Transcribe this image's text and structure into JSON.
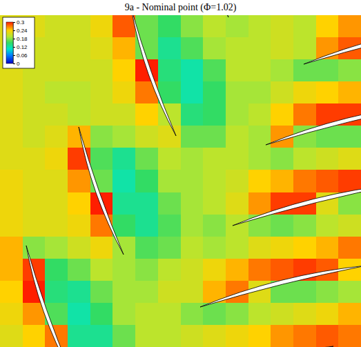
{
  "chart_data": {
    "type": "contour",
    "title": "9a - Nominal point (Φ=1.02)",
    "tick_labels": false,
    "cells": [
      [
        0.22,
        0.22,
        0.21,
        0.21,
        0.23,
        0.28,
        0.17,
        0.15,
        0.18,
        0.2,
        0.19,
        0.2,
        0.21,
        0.2,
        0.24,
        0.26
      ],
      [
        0.22,
        0.21,
        0.21,
        0.21,
        0.22,
        0.25,
        0.17,
        0.13,
        0.16,
        0.19,
        0.2,
        0.2,
        0.21,
        0.2,
        0.26,
        0.28
      ],
      [
        0.22,
        0.21,
        0.21,
        0.21,
        0.21,
        0.24,
        0.3,
        0.14,
        0.12,
        0.16,
        0.2,
        0.2,
        0.19,
        0.17,
        0.17,
        0.18
      ],
      [
        0.22,
        0.21,
        0.2,
        0.2,
        0.21,
        0.23,
        0.27,
        0.15,
        0.12,
        0.15,
        0.19,
        0.19,
        0.21,
        0.23,
        0.24,
        0.25
      ],
      [
        0.22,
        0.21,
        0.21,
        0.2,
        0.21,
        0.21,
        0.24,
        0.2,
        0.14,
        0.15,
        0.19,
        0.2,
        0.24,
        0.27,
        0.29,
        0.29
      ],
      [
        0.22,
        0.21,
        0.22,
        0.25,
        0.18,
        0.19,
        0.21,
        0.22,
        0.17,
        0.17,
        0.2,
        0.19,
        0.26,
        0.18,
        0.17,
        0.17
      ],
      [
        0.22,
        0.22,
        0.23,
        0.29,
        0.16,
        0.13,
        0.17,
        0.2,
        0.19,
        0.2,
        0.2,
        0.19,
        0.18,
        0.2,
        0.21,
        0.22
      ],
      [
        0.23,
        0.22,
        0.22,
        0.26,
        0.17,
        0.12,
        0.15,
        0.19,
        0.19,
        0.2,
        0.21,
        0.24,
        0.25,
        0.27,
        0.28,
        0.29
      ],
      [
        0.23,
        0.22,
        0.22,
        0.24,
        0.3,
        0.13,
        0.13,
        0.17,
        0.19,
        0.2,
        0.22,
        0.26,
        0.29,
        0.29,
        0.22,
        0.18
      ],
      [
        0.23,
        0.22,
        0.22,
        0.23,
        0.27,
        0.15,
        0.13,
        0.16,
        0.19,
        0.18,
        0.2,
        0.18,
        0.17,
        0.18,
        0.2,
        0.21
      ],
      [
        0.25,
        0.18,
        0.19,
        0.21,
        0.23,
        0.19,
        0.16,
        0.17,
        0.2,
        0.19,
        0.2,
        0.22,
        0.23,
        0.24,
        0.25,
        0.27
      ],
      [
        0.25,
        0.29,
        0.15,
        0.17,
        0.2,
        0.19,
        0.18,
        0.2,
        0.21,
        0.23,
        0.25,
        0.27,
        0.28,
        0.29,
        0.28,
        0.24
      ],
      [
        0.24,
        0.3,
        0.14,
        0.13,
        0.17,
        0.19,
        0.19,
        0.21,
        0.21,
        0.25,
        0.27,
        0.22,
        0.17,
        0.17,
        0.18,
        0.19
      ],
      [
        0.23,
        0.26,
        0.16,
        0.12,
        0.15,
        0.19,
        0.2,
        0.2,
        0.18,
        0.17,
        0.18,
        0.2,
        0.21,
        0.22,
        0.23,
        0.25
      ],
      [
        0.22,
        0.24,
        0.27,
        0.13,
        0.13,
        0.17,
        0.2,
        0.2,
        0.21,
        0.22,
        0.23,
        0.24,
        0.26,
        0.27,
        0.28,
        0.27
      ]
    ],
    "colorbar": {
      "range": [
        0,
        0.3
      ],
      "ticks": [
        0,
        0.06,
        0.12,
        0.18,
        0.24,
        0.3
      ]
    }
  }
}
